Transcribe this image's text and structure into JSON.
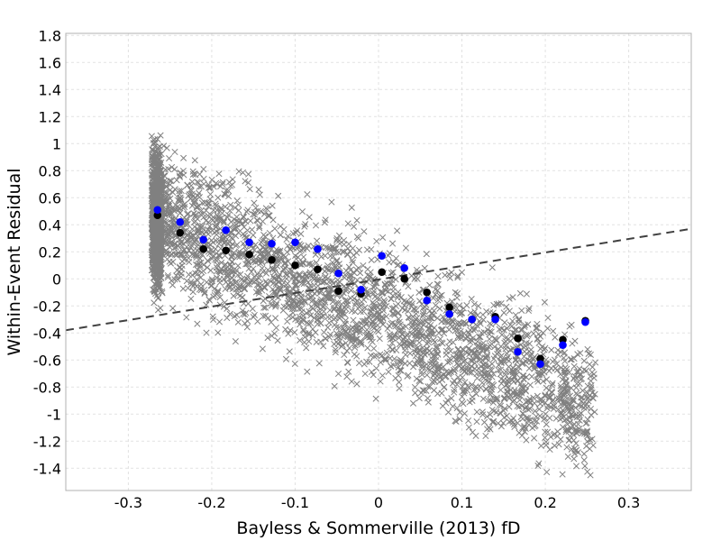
{
  "chart_data": {
    "type": "scatter",
    "xlabel": "Bayless & Sommerville (2013) fD",
    "ylabel": "Within-Event Residual",
    "xlim": [
      -0.375,
      0.375
    ],
    "ylim": [
      -1.565,
      1.815
    ],
    "xticks": [
      -0.3,
      -0.2,
      -0.1,
      0,
      0.1,
      0.2,
      0.3
    ],
    "xtick_labels": [
      "-0.3",
      "-0.2",
      "-0.1",
      "0",
      "0.1",
      "0.2",
      "0.3"
    ],
    "yticks": [
      -1.4,
      -1.2,
      -1,
      -0.8,
      -0.6,
      -0.4,
      -0.2,
      0,
      0.2,
      0.4,
      0.6,
      0.8,
      1,
      1.2,
      1.4,
      1.6,
      1.8
    ],
    "ytick_labels": [
      "-1.4",
      "-1.2",
      "-1",
      "-0.8",
      "-0.6",
      "-0.4",
      "-0.2",
      "0",
      "0.2",
      "0.4",
      "0.6",
      "0.8",
      "1",
      "1.2",
      "1.4",
      "1.6",
      "1.8"
    ],
    "grid": true,
    "scatter_cloud": {
      "marker": "x",
      "color": "#808080",
      "approx_count": 6000,
      "x_range": [
        -0.27,
        0.26
      ],
      "note_trend": "dense vertical band near x=-0.265, values spread roughly -1.2 to 1.4, drifting downward with increasing fD"
    },
    "series": [
      {
        "color": "#000000",
        "marker": "circle",
        "x": [
          -0.265,
          -0.238,
          -0.21,
          -0.183,
          -0.155,
          -0.128,
          -0.1,
          -0.073,
          -0.048,
          -0.021,
          0.004,
          0.031,
          0.058,
          0.085,
          0.112,
          0.14,
          0.167,
          0.194,
          0.221,
          0.248
        ],
        "y": [
          0.47,
          0.34,
          0.22,
          0.21,
          0.18,
          0.14,
          0.1,
          0.07,
          -0.09,
          -0.11,
          0.05,
          0.0,
          -0.1,
          -0.21,
          -0.3,
          -0.28,
          -0.44,
          -0.59,
          -0.45,
          -0.31
        ]
      },
      {
        "color": "#0000ff",
        "marker": "circle",
        "x": [
          -0.265,
          -0.238,
          -0.21,
          -0.183,
          -0.155,
          -0.128,
          -0.1,
          -0.073,
          -0.048,
          -0.021,
          0.004,
          0.031,
          0.058,
          0.085,
          0.112,
          0.14,
          0.167,
          0.194,
          0.221,
          0.248
        ],
        "y": [
          0.51,
          0.42,
          0.29,
          0.36,
          0.27,
          0.26,
          0.27,
          0.22,
          0.04,
          -0.08,
          0.17,
          0.08,
          -0.16,
          -0.26,
          -0.3,
          -0.3,
          -0.54,
          -0.63,
          -0.49,
          -0.32
        ]
      }
    ],
    "reference_line": {
      "style": "dashed",
      "color": "#404040",
      "x": [
        -0.375,
        0.375
      ],
      "y": [
        -0.38,
        0.37
      ]
    }
  }
}
